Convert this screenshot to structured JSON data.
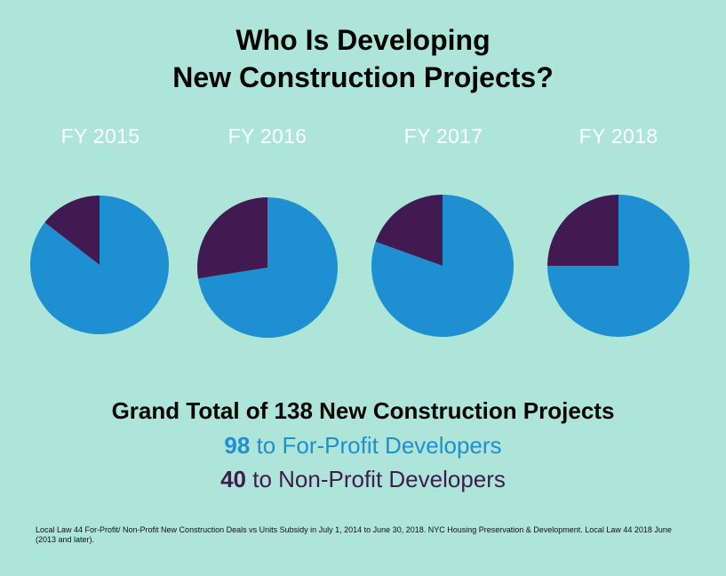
{
  "title": {
    "line1": "Who Is Developing",
    "line2": "New Construction Projects?"
  },
  "chart_data": {
    "type": "pie",
    "charts": [
      {
        "label": "FY 2015",
        "slices": [
          {
            "name": "For-Profit",
            "value": 85.5
          },
          {
            "name": "Non-Profit",
            "value": 14.5
          }
        ]
      },
      {
        "label": "FY 2016",
        "slices": [
          {
            "name": "For-Profit",
            "value": 72.5
          },
          {
            "name": "Non-Profit",
            "value": 27.5
          }
        ]
      },
      {
        "label": "FY 2017",
        "slices": [
          {
            "name": "For-Profit",
            "value": 80.5
          },
          {
            "name": "Non-Profit",
            "value": 19.5
          }
        ]
      },
      {
        "label": "FY 2018",
        "slices": [
          {
            "name": "For-Profit",
            "value": 75
          },
          {
            "name": "Non-Profit",
            "value": 25
          }
        ]
      }
    ],
    "colors": {
      "For-Profit": "#1e8fd0",
      "Non-Profit": "#401a50"
    }
  },
  "summary": {
    "total": "Grand Total of 138 New Construction Projects",
    "for_profit_count": "98",
    "for_profit_text": " to For-Profit Developers",
    "non_profit_count": "40",
    "non_profit_text": " to Non-Profit Developers"
  },
  "source": "Local Law 44 For-Profit/ Non-Profit New Construction Deals vs Units Subsidy in July 1, 2014 to June 30, 2018. NYC Housing Preservation & Development. Local Law 44 2018 June (2013 and later)."
}
